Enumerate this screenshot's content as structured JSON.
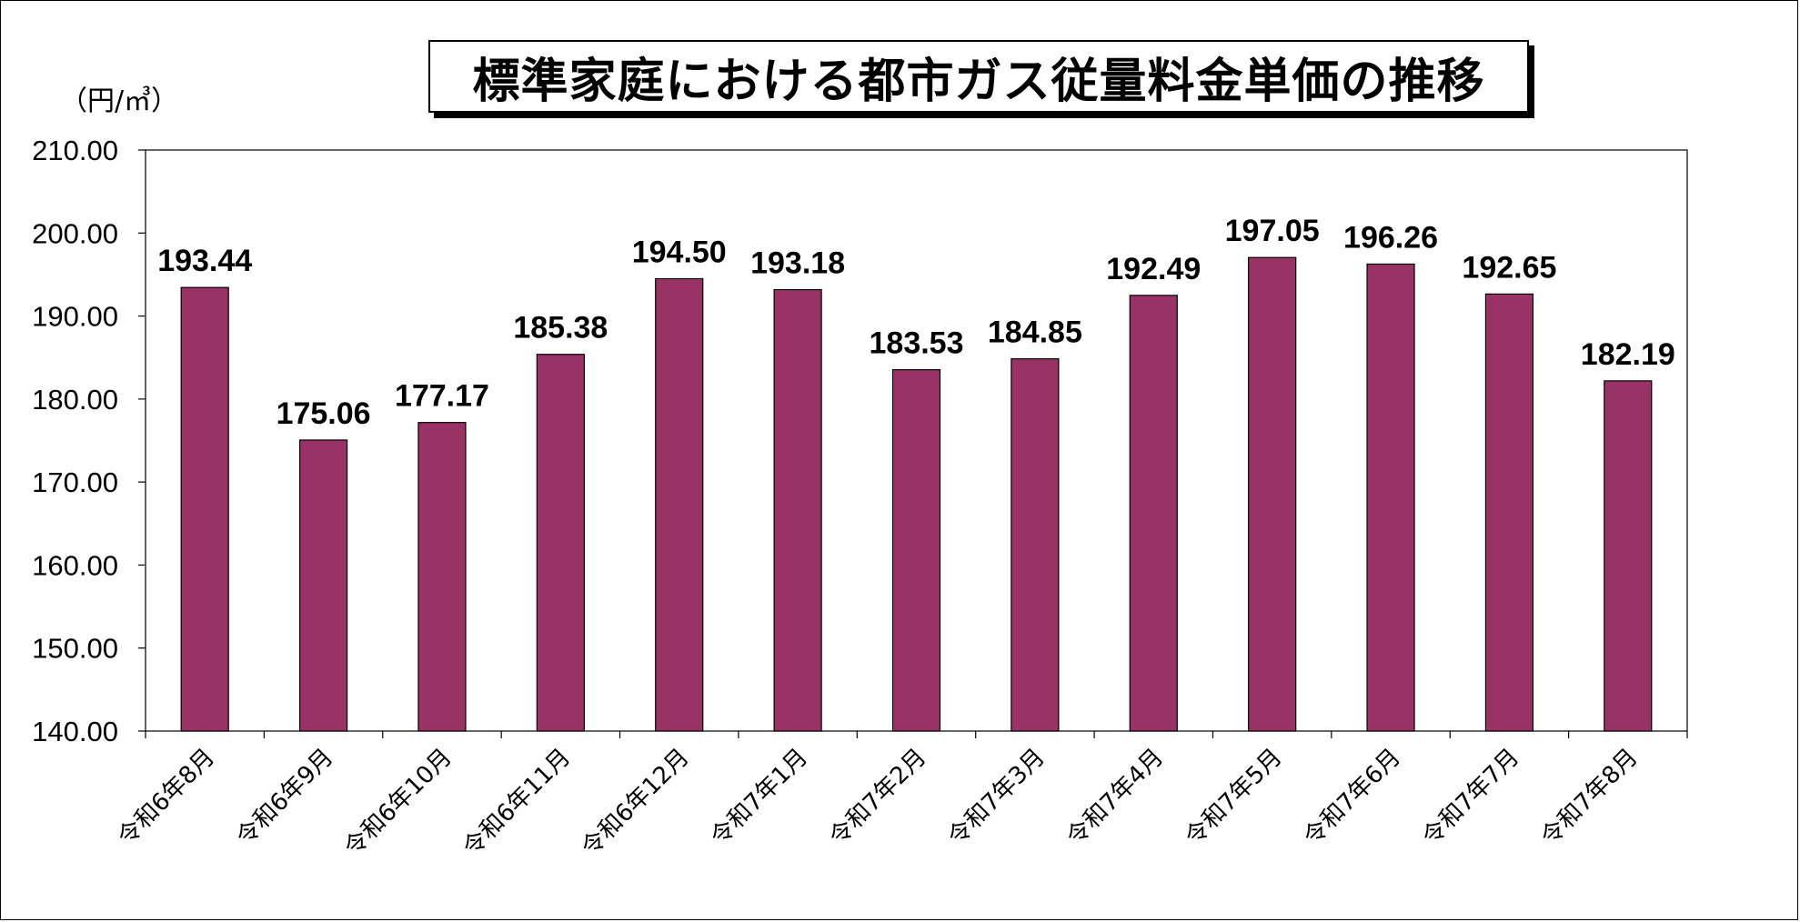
{
  "chart_data": {
    "type": "bar",
    "title": "標準家庭における都市ガス従量料金単価の推移",
    "unit_label": "（円/㎥）",
    "categories": [
      "令和6年8月",
      "令和6年9月",
      "令和6年10月",
      "令和6年11月",
      "令和6年12月",
      "令和7年1月",
      "令和7年2月",
      "令和7年3月",
      "令和7年4月",
      "令和7年5月",
      "令和7年6月",
      "令和7年7月",
      "令和7年8月"
    ],
    "values": [
      193.44,
      175.06,
      177.17,
      185.38,
      194.5,
      193.18,
      183.53,
      184.85,
      192.49,
      197.05,
      196.26,
      192.65,
      182.19
    ],
    "value_labels": [
      "193.44",
      "175.06",
      "177.17",
      "185.38",
      "194.50",
      "193.18",
      "183.53",
      "184.85",
      "192.49",
      "197.05",
      "196.26",
      "192.65",
      "182.19"
    ],
    "y_ticks": [
      "140.00",
      "150.00",
      "160.00",
      "170.00",
      "180.00",
      "190.00",
      "200.00",
      "210.00"
    ],
    "ylim": [
      140,
      210
    ],
    "bar_color": "#993366",
    "grid": false,
    "legend": "none"
  }
}
